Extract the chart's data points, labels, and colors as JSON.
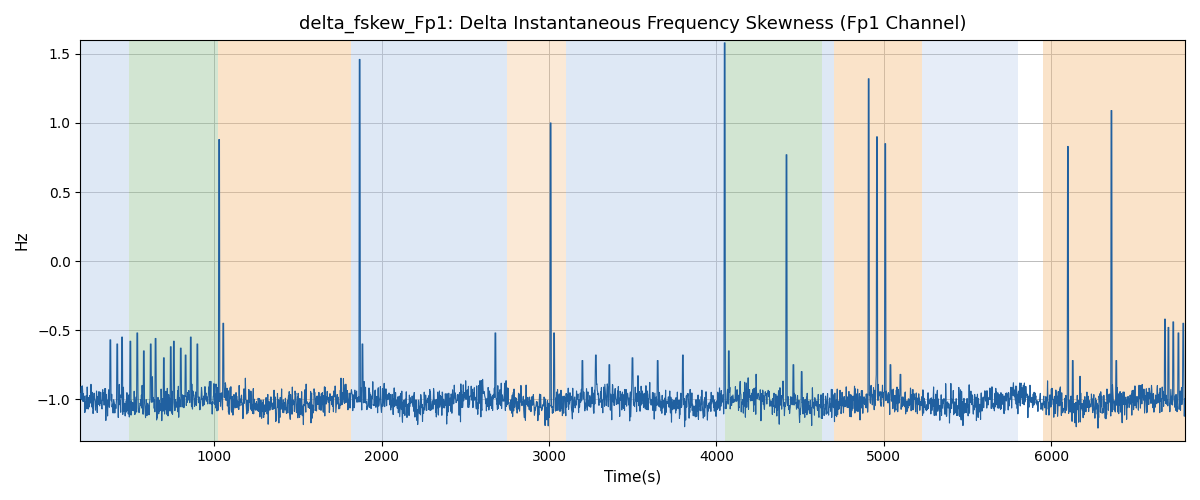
{
  "title": "delta_fskew_Fp1: Delta Instantaneous Frequency Skewness (Fp1 Channel)",
  "xlabel": "Time(s)",
  "ylabel": "Hz",
  "xlim": [
    200,
    6800
  ],
  "ylim": [
    -1.3,
    1.6
  ],
  "line_color": "#2060a0",
  "line_width": 0.8,
  "background_color": "#ffffff",
  "grid_color": "#bbbbbb",
  "title_fontsize": 13,
  "label_fontsize": 11,
  "tick_fontsize": 10,
  "bg_regions": [
    {
      "start": 200,
      "end": 490,
      "color": "#aec6e8",
      "alpha": 0.4
    },
    {
      "start": 490,
      "end": 1020,
      "color": "#90c090",
      "alpha": 0.4
    },
    {
      "start": 1020,
      "end": 1820,
      "color": "#f4b97a",
      "alpha": 0.4
    },
    {
      "start": 1820,
      "end": 2750,
      "color": "#aec6e8",
      "alpha": 0.4
    },
    {
      "start": 2750,
      "end": 3100,
      "color": "#f4b97a",
      "alpha": 0.3
    },
    {
      "start": 3100,
      "end": 4050,
      "color": "#aec6e8",
      "alpha": 0.4
    },
    {
      "start": 4050,
      "end": 4630,
      "color": "#90c090",
      "alpha": 0.4
    },
    {
      "start": 4630,
      "end": 4700,
      "color": "#aec6e8",
      "alpha": 0.4
    },
    {
      "start": 4700,
      "end": 5230,
      "color": "#f4b97a",
      "alpha": 0.4
    },
    {
      "start": 5230,
      "end": 5800,
      "color": "#aec6e8",
      "alpha": 0.3
    },
    {
      "start": 5800,
      "end": 5950,
      "color": "#ffffff",
      "alpha": 0.0
    },
    {
      "start": 5950,
      "end": 6800,
      "color": "#f4b97a",
      "alpha": 0.4
    }
  ],
  "seed": 42,
  "n_points": 3200,
  "t_start": 200,
  "t_end": 6800,
  "base_level": -1.02,
  "noise_amp": 0.055
}
